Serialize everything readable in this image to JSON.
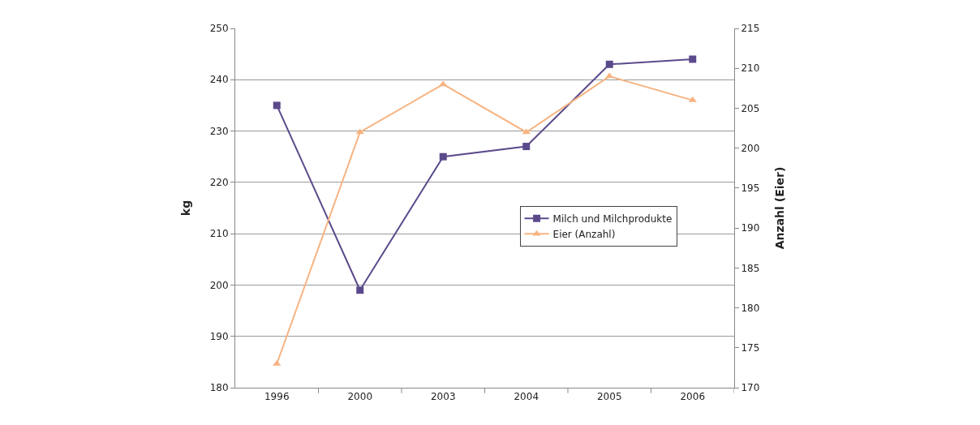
{
  "chart_data": {
    "type": "line",
    "ylabel": "kg",
    "y2label": "Anzahl (Eier)",
    "categories": [
      "1996",
      "2000",
      "2003",
      "2004",
      "2005",
      "2006"
    ],
    "series": [
      {
        "name": "Milch und Milchprodukte",
        "color": "#5b4a8b",
        "values": [
          235,
          199,
          225,
          227,
          243,
          244
        ],
        "marker": "square"
      },
      {
        "name": "Eier (Anzahl)",
        "color": "#f7b381",
        "values": [
          173,
          202,
          208,
          202,
          209,
          206
        ],
        "marker": "triangle",
        "axis": "y2"
      }
    ],
    "ylim": [
      180,
      250
    ],
    "yticks": [
      180,
      190,
      200,
      210,
      220,
      230,
      240,
      250
    ],
    "y2lim": [
      170,
      215
    ],
    "y2ticks": [
      170,
      175,
      180,
      185,
      190,
      195,
      200,
      205,
      210,
      215
    ],
    "grid": "y",
    "legend": "right",
    "line_style": "solid"
  }
}
